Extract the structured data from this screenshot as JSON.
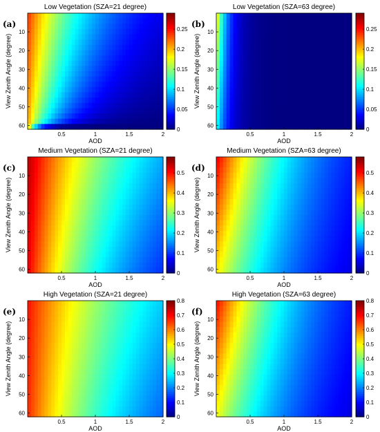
{
  "figure": {
    "colormap": "jet",
    "x_axis_label": "AOD",
    "y_axis_label": "View Zenith Angle (degree)"
  },
  "chart_data": [
    {
      "type": "heatmap",
      "panel": "(a)",
      "title": "Low Vegetation (SZA=21 degree)",
      "xlabel": "AOD",
      "ylabel": "View Zenith Angle (degree)",
      "xlim": [
        0,
        2
      ],
      "ylim": [
        0,
        62
      ],
      "xticks": [
        "0.5",
        "1",
        "1.5",
        "2"
      ],
      "yticks": [
        "10",
        "20",
        "30",
        "40",
        "50",
        "60"
      ],
      "colorbar": {
        "min": 0,
        "max": 0.29,
        "ticks": [
          "0",
          "0.05",
          "0.1",
          "0.15",
          "0.2",
          "0.25"
        ]
      },
      "value_range": {
        "at_aod_0_vza_0": 0.24,
        "at_aod_0_vza_60": 0.21,
        "at_aod_2_vza_0": 0.03,
        "at_aod_2_vza_60": 0.0
      }
    },
    {
      "type": "heatmap",
      "panel": "(b)",
      "title": "Low Vegetation (SZA=63 degree)",
      "xlabel": "AOD",
      "ylabel": "View Zenith Angle (degree)",
      "xlim": [
        0,
        2
      ],
      "ylim": [
        0,
        62
      ],
      "xticks": [
        "0.5",
        "1",
        "1.5",
        "2"
      ],
      "yticks": [
        "10",
        "20",
        "30",
        "40",
        "50",
        "60"
      ],
      "colorbar": {
        "min": 0,
        "max": 0.29,
        "ticks": [
          "0",
          "0.05",
          "0.1",
          "0.15",
          "0.2",
          "0.25"
        ]
      },
      "value_range": {
        "at_aod_0_vza_0": 0.2,
        "at_aod_0_vza_60": 0.12,
        "at_aod_2_vza_0": 0.0,
        "at_aod_2_vza_60": 0.0
      }
    },
    {
      "type": "heatmap",
      "panel": "(c)",
      "title": "Medium Vegetation (SZA=21 degree)",
      "xlabel": "AOD",
      "ylabel": "View Zenith Angle (degree)",
      "xlim": [
        0,
        2
      ],
      "ylim": [
        0,
        62
      ],
      "xticks": [
        "0.5",
        "1",
        "1.5",
        "2"
      ],
      "yticks": [
        "10",
        "20",
        "30",
        "40",
        "50",
        "60"
      ],
      "colorbar": {
        "min": 0,
        "max": 0.58,
        "ticks": [
          "0",
          "0.1",
          "0.2",
          "0.3",
          "0.4",
          "0.5"
        ]
      },
      "value_range": {
        "at_aod_0_vza_0": 0.55,
        "at_aod_0_vza_60": 0.52,
        "at_aod_2_vza_0": 0.17,
        "at_aod_2_vza_60": 0.1
      }
    },
    {
      "type": "heatmap",
      "panel": "(d)",
      "title": "Medium Vegetation (SZA=63 degree)",
      "xlabel": "AOD",
      "ylabel": "View Zenith Angle (degree)",
      "xlim": [
        0,
        2
      ],
      "ylim": [
        0,
        62
      ],
      "xticks": [
        "0.5",
        "1",
        "1.5",
        "2"
      ],
      "yticks": [
        "10",
        "20",
        "30",
        "40",
        "50",
        "60"
      ],
      "colorbar": {
        "min": 0,
        "max": 0.58,
        "ticks": [
          "0",
          "0.1",
          "0.2",
          "0.3",
          "0.4",
          "0.5"
        ]
      },
      "value_range": {
        "at_aod_0_vza_0": 0.52,
        "at_aod_0_vza_60": 0.38,
        "at_aod_2_vza_0": 0.09,
        "at_aod_2_vza_60": 0.06
      }
    },
    {
      "type": "heatmap",
      "panel": "(e)",
      "title": "High Vegetation (SZA=21 degree)",
      "xlabel": "AOD",
      "ylabel": "View Zenith Angle (degree)",
      "xlim": [
        0,
        2
      ],
      "ylim": [
        0,
        62
      ],
      "xticks": [
        "0.5",
        "1",
        "1.5",
        "2"
      ],
      "yticks": [
        "10",
        "20",
        "30",
        "40",
        "50",
        "60"
      ],
      "colorbar": {
        "min": 0,
        "max": 0.8,
        "ticks": [
          "0",
          "0.1",
          "0.2",
          "0.3",
          "0.4",
          "0.5",
          "0.6",
          "0.7",
          "0.8"
        ]
      },
      "value_range": {
        "at_aod_0_vza_0": 0.69,
        "at_aod_0_vza_60": 0.67,
        "at_aod_2_vza_0": 0.26,
        "at_aod_2_vza_60": 0.18
      }
    },
    {
      "type": "heatmap",
      "panel": "(f)",
      "title": "High Vegetation (SZA=63 degree)",
      "xlabel": "AOD",
      "ylabel": "View Zenith Angle (degree)",
      "xlim": [
        0,
        2
      ],
      "ylim": [
        0,
        62
      ],
      "xticks": [
        "0.5",
        "1",
        "1.5",
        "2"
      ],
      "yticks": [
        "10",
        "20",
        "30",
        "40",
        "50",
        "60"
      ],
      "colorbar": {
        "min": 0,
        "max": 0.8,
        "ticks": [
          "0",
          "0.1",
          "0.2",
          "0.3",
          "0.4",
          "0.5",
          "0.6",
          "0.7",
          "0.8"
        ]
      },
      "value_range": {
        "at_aod_0_vza_0": 0.7,
        "at_aod_0_vza_60": 0.5,
        "at_aod_2_vza_0": 0.12,
        "at_aod_2_vza_60": 0.08
      }
    }
  ]
}
